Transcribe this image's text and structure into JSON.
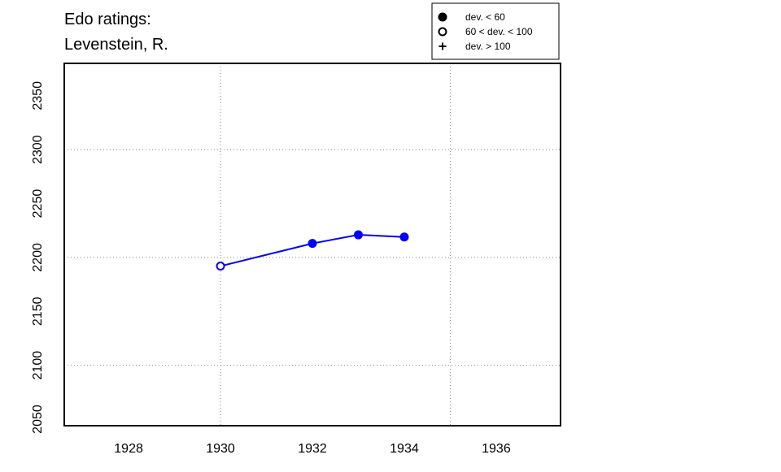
{
  "chart_data": {
    "type": "line",
    "title": [
      "Edo ratings:",
      "Levenstein, R."
    ],
    "x": [
      1930,
      1932,
      1933,
      1934
    ],
    "series": [
      {
        "color": "#0000ff",
        "values": [
          2192,
          2213,
          2221,
          2219
        ],
        "markers": [
          "open",
          "filled",
          "filled",
          "filled"
        ]
      }
    ],
    "xlim": [
      1926.6,
      1937.4
    ],
    "xticks": [
      1928,
      1930,
      1932,
      1934,
      1936
    ],
    "ylim": [
      2044,
      2380
    ],
    "yticks": [
      2050,
      2100,
      2150,
      2200,
      2250,
      2300,
      2350
    ],
    "xgrid": [
      1930,
      1935
    ],
    "ygrid": [
      2100,
      2200,
      2300
    ],
    "legend": {
      "position": "top-right",
      "entries": [
        {
          "marker": "filled",
          "label": "dev. < 60"
        },
        {
          "marker": "open",
          "label": "60 < dev. < 100"
        },
        {
          "marker": "plus",
          "label": "dev. > 100"
        }
      ]
    }
  }
}
